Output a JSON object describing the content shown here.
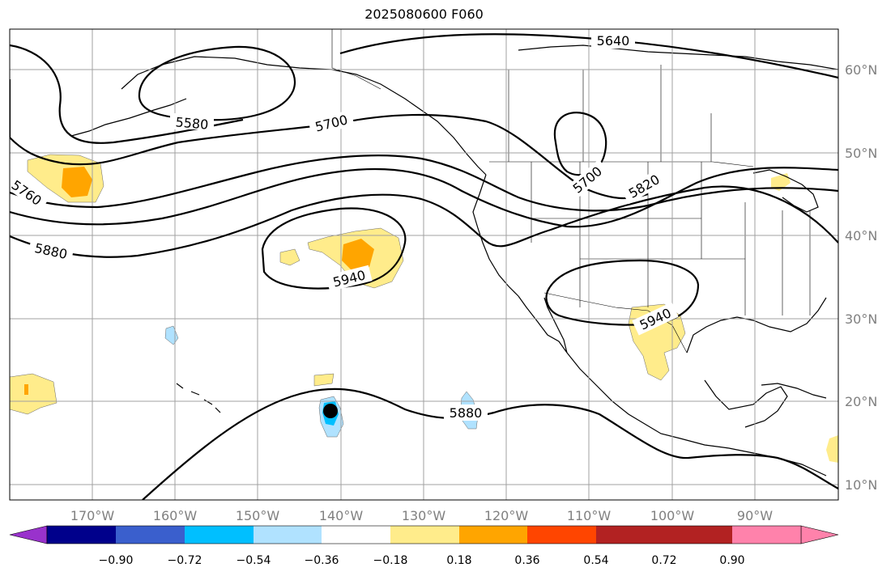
{
  "title": "2025080600 F060",
  "lat_labels": [
    "60°N",
    "50°N",
    "40°N",
    "30°N",
    "20°N",
    "10°N"
  ],
  "lon_labels": [
    "170°W",
    "160°W",
    "150°W",
    "140°W",
    "130°W",
    "120°W",
    "110°W",
    "100°W",
    "90°W"
  ],
  "contour_labels": [
    "5640",
    "5580",
    "5700",
    "5700",
    "5820",
    "5760",
    "5880",
    "5940",
    "5940",
    "5880"
  ],
  "colorbar": {
    "colors": [
      "#9932cc",
      "#00008b",
      "#3a5fcd",
      "#00bfff",
      "#b0e2ff",
      "#ffffff",
      "#ffec8b",
      "#ffa500",
      "#ff4500",
      "#b22222",
      "#ff82ab"
    ],
    "tick_labels": [
      "−0.90",
      "−0.72",
      "−0.54",
      "−0.36",
      "−0.18",
      "0.18",
      "0.36",
      "0.54",
      "0.72",
      "0.90"
    ]
  },
  "colors": {
    "gridline": "#a0a0a0",
    "coastline": "#000000",
    "contour": "#000000",
    "anomaly_positive_low": "#ffec8b",
    "anomaly_positive_mid": "#ffa500",
    "anomaly_negative_low": "#b0e2ff",
    "anomaly_negative_mid": "#00bfff"
  }
}
